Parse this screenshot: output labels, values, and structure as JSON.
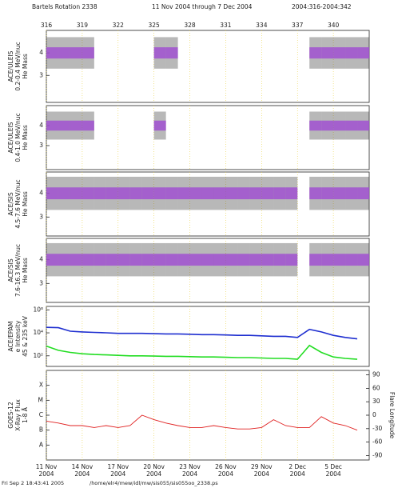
{
  "header": {
    "title": "Bartels Rotation 2338",
    "range": "11 Nov 2004 through 7 Dec 2004",
    "doy": "2004:316-2004:342"
  },
  "footer": {
    "date": "Fri Sep  2 18:43:41 2005",
    "path": "/home/elr4/mew/idl/mw/sis055/sis055oo_2338.ps"
  },
  "xlim": [
    316,
    343
  ],
  "top_xticks": [
    316,
    319,
    322,
    325,
    328,
    331,
    334,
    337,
    340
  ],
  "date_ticks": [
    {
      "value": 316,
      "label": "11 Nov 2004"
    },
    {
      "value": 319,
      "label": "14 Nov 2004"
    },
    {
      "value": 322,
      "label": "17 Nov 2004"
    },
    {
      "value": 325,
      "label": "20 Nov 2004"
    },
    {
      "value": 328,
      "label": "23 Nov 2004"
    },
    {
      "value": 331,
      "label": "26 Nov 2004"
    },
    {
      "value": 334,
      "label": "29 Nov 2004"
    },
    {
      "value": 337,
      "label": "2 Dec 2004"
    },
    {
      "value": 340,
      "label": "5 Dec 2004"
    }
  ],
  "grid": true,
  "chart_data": [
    {
      "type": "scatter",
      "ylabel": [
        "ACE/ULEIS",
        "0.2-0.4 MeV/nuc",
        "He Mass"
      ],
      "ylim": [
        1.8,
        5.0
      ],
      "yticks": [
        3,
        4
      ],
      "color": "#a050d0",
      "x": [
        316,
        317,
        318,
        319,
        325,
        326,
        338,
        339,
        340,
        341,
        342
      ],
      "values": [
        4,
        4,
        4,
        4,
        4,
        4,
        4,
        4,
        4,
        4,
        4
      ]
    },
    {
      "type": "scatter",
      "ylabel": [
        "ACE/ULEIS",
        "0.4-1.0 MeV/nuc",
        "He Mass"
      ],
      "ylim": [
        1.8,
        5.0
      ],
      "yticks": [
        3,
        4
      ],
      "color": "#a050d0",
      "x": [
        316,
        317,
        318,
        319,
        325,
        338,
        339,
        340,
        341,
        342
      ],
      "values": [
        4,
        4,
        4,
        4,
        4,
        4,
        4,
        4,
        4,
        4
      ]
    },
    {
      "type": "scatter",
      "ylabel": [
        "ACE/SIS",
        "4.5-7.6 MeV/nuc",
        "He Mass"
      ],
      "ylim": [
        2.2,
        4.9
      ],
      "yticks": [
        3,
        4
      ],
      "color": "#a050d0",
      "x": [
        316,
        317,
        318,
        319,
        320,
        321,
        322,
        323,
        324,
        325,
        326,
        327,
        328,
        329,
        330,
        331,
        332,
        333,
        334,
        335,
        336,
        338,
        339,
        340,
        341,
        342
      ],
      "values": [
        4,
        4,
        4,
        4,
        4,
        4,
        4,
        4,
        4,
        4,
        4,
        4,
        4,
        4,
        4,
        4,
        4,
        4,
        4,
        4,
        4,
        4,
        4,
        4,
        4,
        4
      ]
    },
    {
      "type": "scatter",
      "ylabel": [
        "ACE/SIS",
        "7.6-16.3 MeV/nuc",
        "He Mass"
      ],
      "ylim": [
        2.2,
        4.9
      ],
      "yticks": [
        3,
        4
      ],
      "color": "#a050d0",
      "x": [
        316,
        317,
        318,
        319,
        320,
        321,
        322,
        323,
        324,
        325,
        326,
        327,
        328,
        329,
        330,
        331,
        332,
        333,
        334,
        335,
        336,
        338,
        339,
        340,
        341,
        342
      ],
      "values": [
        4,
        4,
        4,
        4,
        4,
        4,
        4,
        4,
        4,
        4,
        4,
        4,
        4,
        4,
        4,
        4,
        4,
        4,
        4,
        4,
        4,
        4,
        4,
        4,
        4,
        4
      ]
    },
    {
      "type": "line",
      "log": true,
      "ylabel": [
        "ACE/EPAM",
        "e Intensity",
        "45 & 235 keV"
      ],
      "ylim": [
        12,
        2000000
      ],
      "yticks": [
        {
          "value": 100,
          "label": "10²"
        },
        {
          "value": 10000,
          "label": "10⁴"
        },
        {
          "value": 1000000,
          "label": "10⁶"
        }
      ],
      "x": [
        316,
        317,
        318,
        319,
        320,
        321,
        322,
        323,
        324,
        325,
        326,
        327,
        328,
        329,
        330,
        331,
        332,
        333,
        334,
        335,
        336,
        337,
        338,
        339,
        340,
        341,
        342
      ],
      "series": [
        {
          "color": "#1f2fd0",
          "values": [
            30000,
            28000,
            14000,
            12000,
            11000,
            10000,
            9000,
            9000,
            9000,
            8500,
            8000,
            8000,
            7500,
            7000,
            7000,
            6500,
            6000,
            6000,
            5500,
            5000,
            5000,
            4000,
            20000,
            12000,
            6000,
            4000,
            3000
          ]
        },
        {
          "color": "#22dd22",
          "values": [
            700,
            300,
            200,
            150,
            130,
            120,
            110,
            100,
            100,
            95,
            90,
            90,
            85,
            80,
            80,
            75,
            70,
            70,
            65,
            60,
            60,
            50,
            800,
            200,
            80,
            60,
            50
          ]
        }
      ]
    },
    {
      "type": "line",
      "log": true,
      "ylabel": [
        "GOES-12",
        "X-Ray Flux",
        "1-8 Å"
      ],
      "ylim": [
        1e-09,
        0.001
      ],
      "yticks": [
        {
          "value": 1e-08,
          "label": "A"
        },
        {
          "value": 1e-07,
          "label": "B"
        },
        {
          "value": 1e-06,
          "label": "C"
        },
        {
          "value": 1e-05,
          "label": "M"
        },
        {
          "value": 0.0001,
          "label": "X"
        }
      ],
      "y2label": "Flare Longitude",
      "y2lim": [
        -100,
        100
      ],
      "y2ticks": [
        -90,
        -60,
        -30,
        0,
        30,
        60,
        90
      ],
      "x": [
        316,
        317,
        318,
        319,
        320,
        321,
        322,
        323,
        324,
        325,
        326,
        327,
        328,
        329,
        330,
        331,
        332,
        333,
        334,
        335,
        336,
        337,
        338,
        339,
        340,
        341,
        342
      ],
      "series": [
        {
          "color": "#e02020",
          "values": [
            4e-07,
            3e-07,
            2e-07,
            2e-07,
            1.5e-07,
            2e-07,
            1.5e-07,
            2e-07,
            1e-06,
            5e-07,
            3e-07,
            2e-07,
            1.5e-07,
            1.5e-07,
            2e-07,
            1.5e-07,
            1.2e-07,
            1.2e-07,
            1.5e-07,
            5e-07,
            2e-07,
            1.5e-07,
            1.5e-07,
            8e-07,
            3e-07,
            2e-07,
            1e-07
          ]
        }
      ]
    }
  ]
}
